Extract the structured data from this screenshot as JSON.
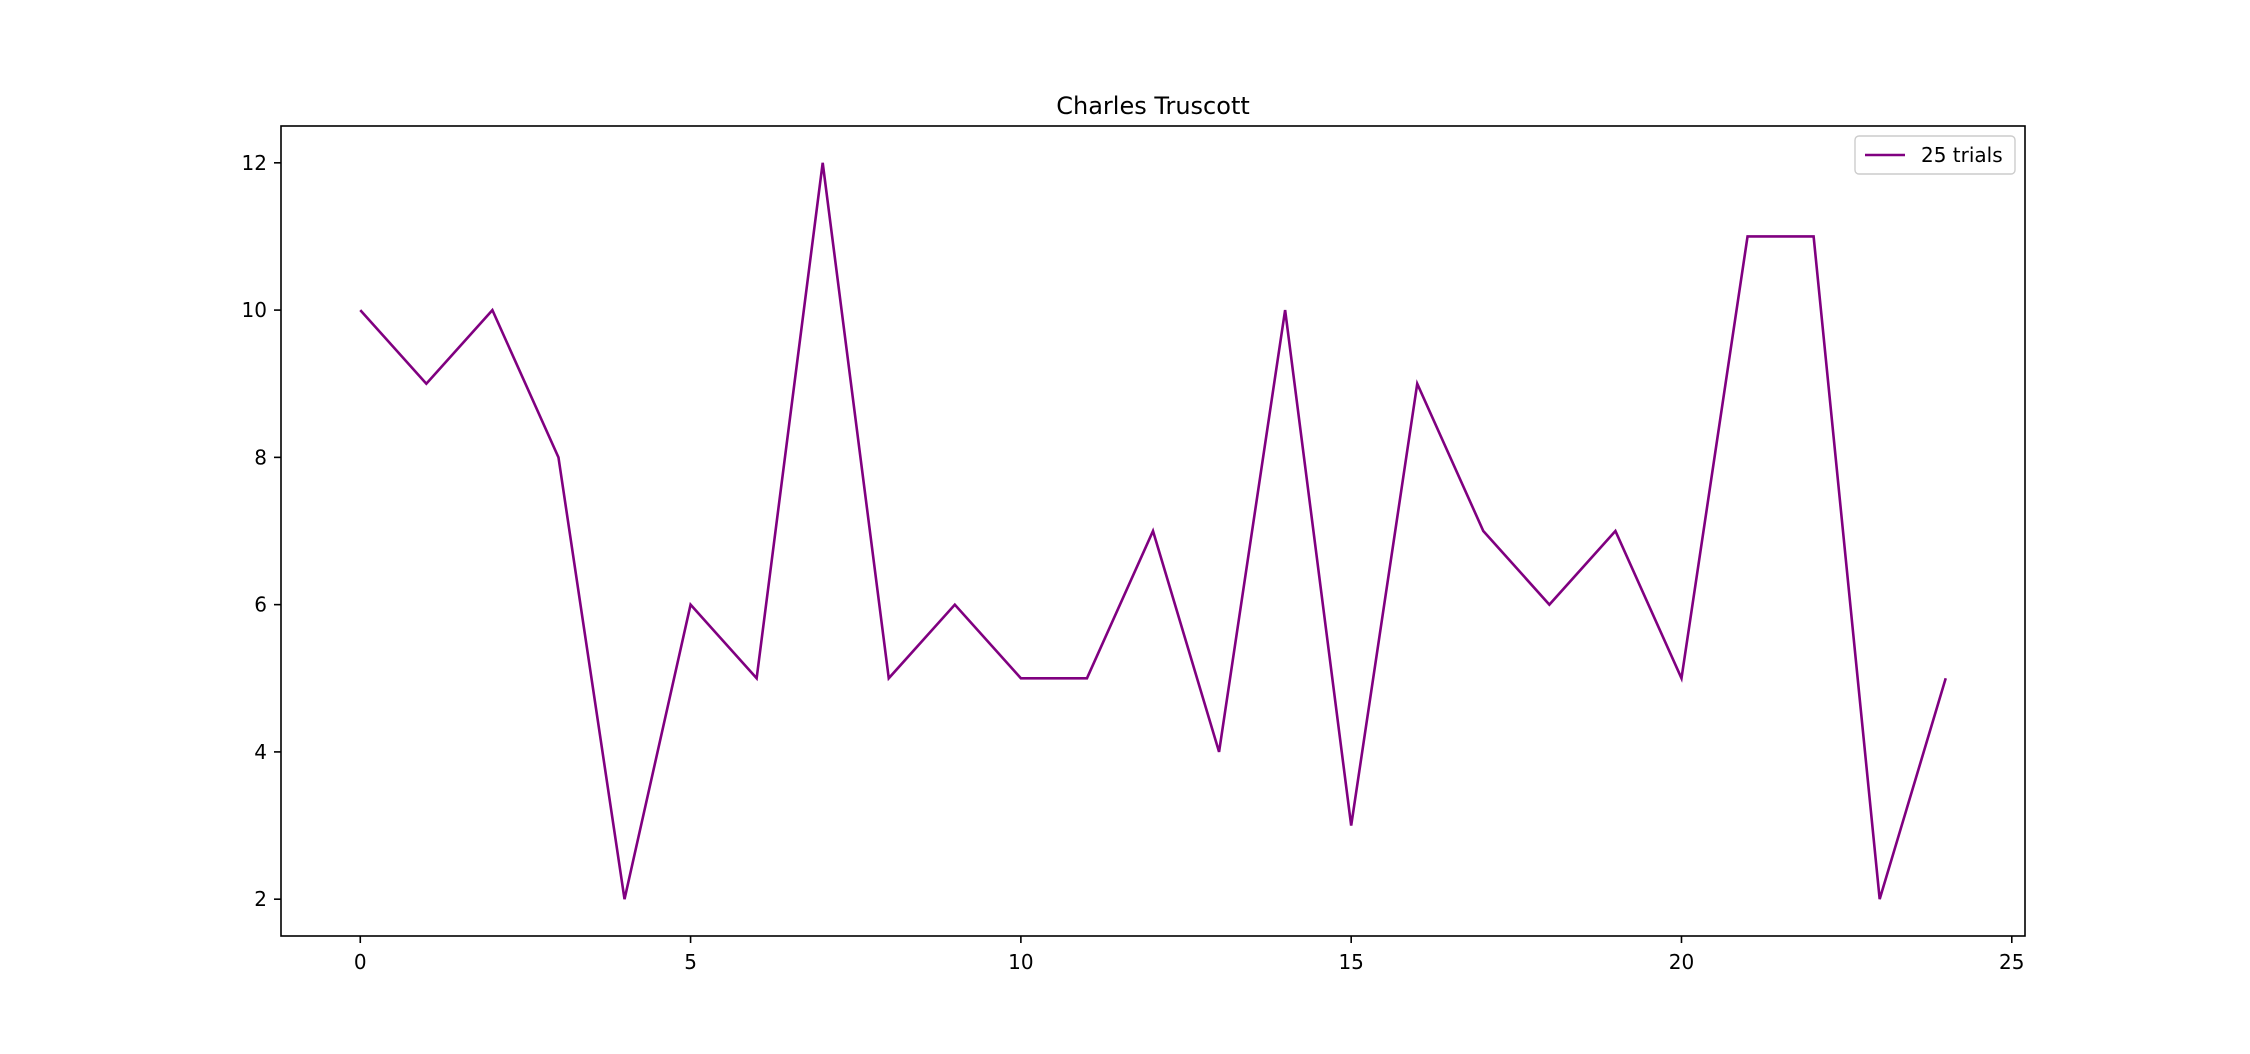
{
  "chart_data": {
    "type": "line",
    "title": "Charles Truscott",
    "xlabel": "",
    "ylabel": "",
    "xlim": [
      -1.2,
      25.2
    ],
    "ylim": [
      1.5,
      12.5
    ],
    "xticks": [
      0,
      5,
      10,
      15,
      20,
      25
    ],
    "yticks": [
      2,
      4,
      6,
      8,
      10,
      12
    ],
    "xtick_labels": [
      "0",
      "5",
      "10",
      "15",
      "20",
      "25"
    ],
    "ytick_labels": [
      "2",
      "4",
      "6",
      "8",
      "10",
      "12"
    ],
    "grid": false,
    "legend_position": "top-right",
    "series": [
      {
        "name": "25 trials",
        "color": "#800080",
        "x": [
          0,
          1,
          2,
          3,
          4,
          5,
          6,
          7,
          8,
          9,
          10,
          11,
          12,
          13,
          14,
          15,
          16,
          17,
          18,
          19,
          20,
          21,
          22,
          23,
          24
        ],
        "y": [
          10,
          9,
          10,
          8,
          2,
          6,
          5,
          12,
          5,
          6,
          5,
          5,
          7,
          4,
          10,
          3,
          9,
          7,
          6,
          7,
          5,
          11,
          11,
          2,
          5
        ]
      }
    ]
  }
}
